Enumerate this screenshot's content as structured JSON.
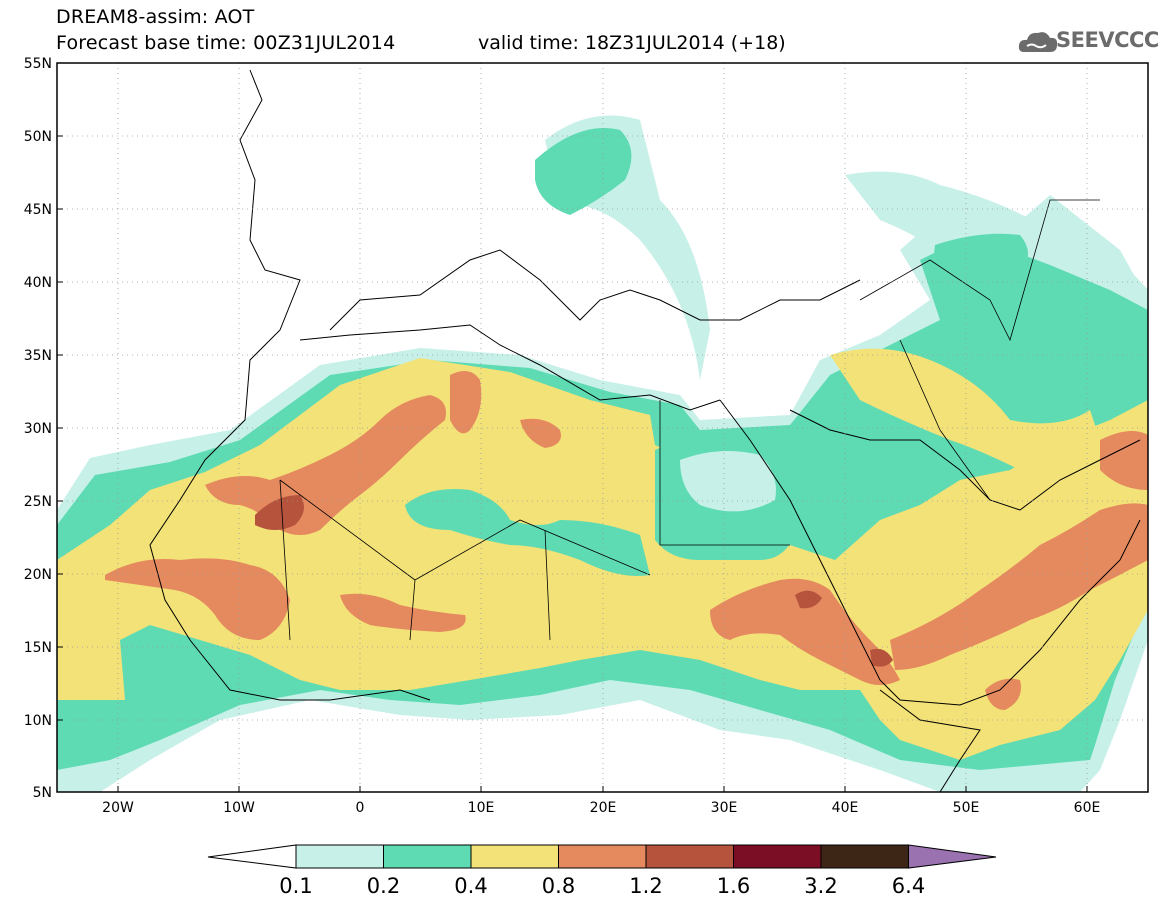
{
  "header": {
    "title_line1": "DREAM8-assim: AOT",
    "title_line2": "Forecast base time: 00Z31JUL2014",
    "valid_time": "valid time: 18Z31JUL2014 (+18)",
    "logo_text": "SEEVCCC"
  },
  "map": {
    "lon_range": [
      -25,
      65
    ],
    "lat_range": [
      5,
      55
    ],
    "lat_labels": [
      "55N",
      "50N",
      "45N",
      "40N",
      "35N",
      "30N",
      "25N",
      "20N",
      "15N",
      "10N",
      "5N"
    ],
    "lon_labels": [
      "20W",
      "10W",
      "0",
      "10E",
      "20E",
      "30E",
      "40E",
      "50E",
      "60E"
    ]
  },
  "colorbar": {
    "labels": [
      "0.1",
      "0.2",
      "0.4",
      "0.8",
      "1.2",
      "1.6",
      "3.2",
      "6.4"
    ],
    "colors": [
      "#c7f0e8",
      "#5fdbb4",
      "#f3e277",
      "#e5895f",
      "#b5533d",
      "#7b0e24",
      "#3d2616",
      "#9a72b0"
    ]
  },
  "palette": {
    "aot_0_1": "#c7f0e8",
    "aot_0_2": "#5fdbb4",
    "aot_0_4": "#f3e277",
    "aot_0_8": "#e5895f",
    "aot_1_2": "#b5533d",
    "aot_1_6": "#7b0e24"
  }
}
